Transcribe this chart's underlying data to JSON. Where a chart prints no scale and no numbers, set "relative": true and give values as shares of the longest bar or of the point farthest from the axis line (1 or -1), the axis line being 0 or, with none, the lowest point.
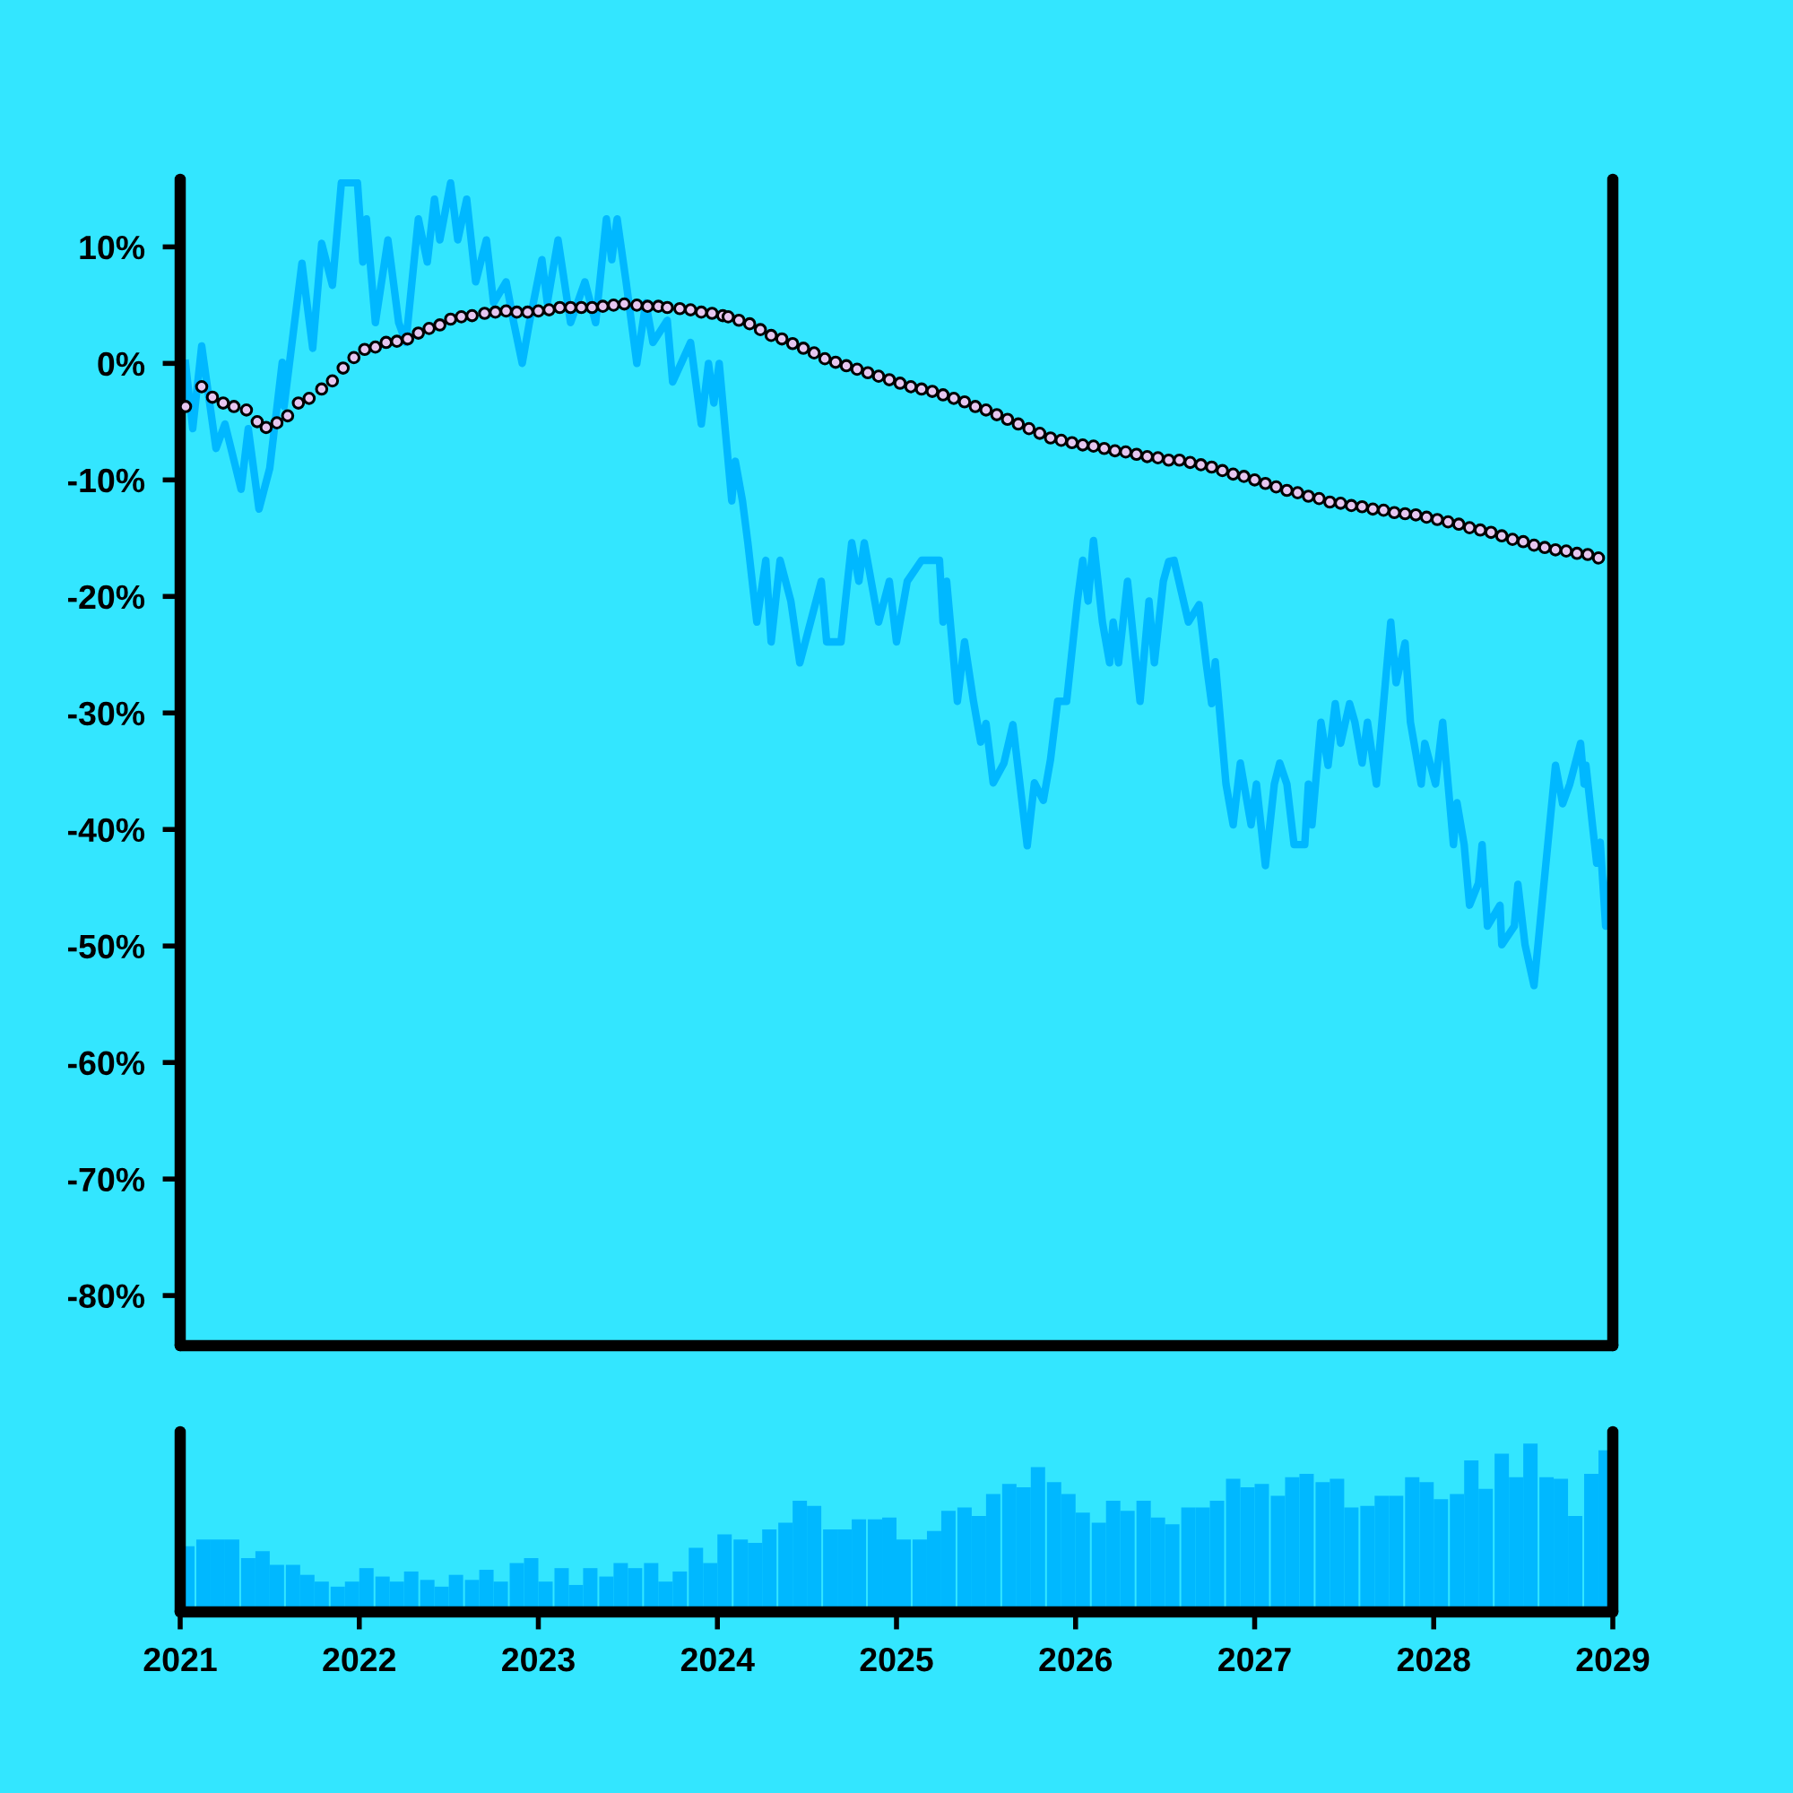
{
  "chart_data": [
    {
      "type": "line",
      "xlim": [
        2021,
        2029
      ],
      "ylim": [
        -84.3,
        15.8
      ],
      "tick_labels": "y",
      "grid": false,
      "yticks": [
        {
          "value": 10,
          "label": "10%"
        },
        {
          "value": 0,
          "label": "0%"
        },
        {
          "value": -10,
          "label": "-10%"
        },
        {
          "value": -20,
          "label": "-20%"
        },
        {
          "value": -30,
          "label": "-30%"
        },
        {
          "value": -40,
          "label": "-40%"
        },
        {
          "value": -50,
          "label": "-50%"
        },
        {
          "value": -60,
          "label": "-60%"
        },
        {
          "value": -70,
          "label": "-70%"
        },
        {
          "value": -80,
          "label": "-80%"
        }
      ],
      "series": [
        {
          "type": "line",
          "color": "#00b8ff",
          "line_style": "solid",
          "marker": "none",
          "x": [
            2021.03,
            2021.07,
            2021.12,
            2021.2,
            2021.25,
            2021.34,
            2021.38,
            2021.44,
            2021.5,
            2021.57,
            2021.58,
            2021.68,
            2021.71,
            2021.74,
            2021.79,
            2021.85,
            2021.9,
            2021.99,
            2022.02,
            2022.04,
            2022.09,
            2022.16,
            2022.22,
            2022.26,
            2022.33,
            2022.38,
            2022.42,
            2022.45,
            2022.51,
            2022.55,
            2022.6,
            2022.65,
            2022.71,
            2022.75,
            2022.82,
            2022.86,
            2022.91,
            2022.95,
            2023.02,
            2023.05,
            2023.11,
            2023.18,
            2023.26,
            2023.32,
            2023.38,
            2023.41,
            2023.44,
            2023.49,
            2023.55,
            2023.6,
            2023.64,
            2023.72,
            2023.75,
            2023.85,
            2023.91,
            2023.95,
            2023.98,
            2024.01,
            2024.08,
            2024.1,
            2024.14,
            2024.17,
            2024.22,
            2024.27,
            2024.3,
            2024.35,
            2024.41,
            2024.46,
            2024.58,
            2024.61,
            2024.69,
            2024.75,
            2024.79,
            2024.82,
            2024.9,
            2024.96,
            2025.0,
            2025.06,
            2025.14,
            2025.24,
            2025.26,
            2025.28,
            2025.34,
            2025.38,
            2025.43,
            2025.47,
            2025.5,
            2025.54,
            2025.6,
            2025.65,
            2025.7,
            2025.73,
            2025.77,
            2025.82,
            2025.86,
            2025.9,
            2025.95,
            2026.01,
            2026.04,
            2026.07,
            2026.1,
            2026.15,
            2026.19,
            2026.21,
            2026.24,
            2026.29,
            2026.36,
            2026.41,
            2026.44,
            2026.49,
            2026.52,
            2026.55,
            2026.63,
            2026.69,
            2026.73,
            2026.76,
            2026.78,
            2026.84,
            2026.88,
            2026.92,
            2026.98,
            2027.01,
            2027.06,
            2027.11,
            2027.14,
            2027.18,
            2027.22,
            2027.28,
            2027.3,
            2027.32,
            2027.37,
            2027.41,
            2027.45,
            2027.48,
            2027.53,
            2027.56,
            2027.6,
            2027.63,
            2027.68,
            2027.76,
            2027.79,
            2027.84,
            2027.87,
            2027.93,
            2027.95,
            2028.01,
            2028.05,
            2028.06,
            2028.11,
            2028.13,
            2028.17,
            2028.2,
            2028.25,
            2028.27,
            2028.3,
            2028.37,
            2028.38,
            2028.45,
            2028.47,
            2028.51,
            2028.56,
            2028.68,
            2028.72,
            2028.76,
            2028.82,
            2028.84,
            2028.85,
            2028.91,
            2028.93,
            2028.96,
            2028.99
          ],
          "values": [
            0.0,
            -5.6,
            1.5,
            -7.3,
            -5.2,
            -10.8,
            -5.6,
            -12.5,
            -9.0,
            0.1,
            -3.7,
            8.6,
            4.9,
            1.3,
            10.3,
            6.7,
            15.5,
            15.5,
            8.7,
            12.4,
            3.5,
            10.6,
            3.5,
            1.8,
            12.4,
            8.7,
            14.1,
            10.6,
            15.5,
            10.6,
            14.1,
            7.0,
            10.6,
            5.2,
            7.0,
            3.7,
            0.0,
            3.5,
            8.9,
            5.2,
            10.6,
            3.5,
            7.0,
            3.5,
            12.4,
            8.9,
            12.4,
            7.0,
            0.0,
            5.2,
            1.8,
            3.7,
            -1.6,
            1.8,
            -5.2,
            0.0,
            -3.4,
            0.0,
            -11.8,
            -8.4,
            -11.8,
            -15.4,
            -22.2,
            -16.9,
            -23.9,
            -16.9,
            -20.4,
            -25.7,
            -18.7,
            -23.9,
            -23.9,
            -15.4,
            -18.7,
            -15.4,
            -22.2,
            -18.7,
            -23.9,
            -18.7,
            -16.9,
            -16.9,
            -22.2,
            -18.7,
            -29.0,
            -23.9,
            -29.0,
            -32.5,
            -30.9,
            -36.0,
            -34.3,
            -31.0,
            -37.5,
            -41.4,
            -36.0,
            -37.5,
            -34.0,
            -29.0,
            -29.0,
            -20.4,
            -16.9,
            -20.4,
            -15.2,
            -22.2,
            -25.7,
            -22.2,
            -25.7,
            -18.7,
            -29.0,
            -20.4,
            -25.7,
            -18.7,
            -17.0,
            -16.9,
            -22.2,
            -20.7,
            -25.8,
            -29.2,
            -25.6,
            -36.1,
            -39.6,
            -34.3,
            -39.6,
            -36.1,
            -43.1,
            -36.1,
            -34.3,
            -36.1,
            -41.3,
            -41.3,
            -36.1,
            -39.6,
            -30.8,
            -34.5,
            -29.2,
            -32.6,
            -29.2,
            -30.8,
            -34.3,
            -30.8,
            -36.1,
            -22.2,
            -27.4,
            -24.0,
            -30.8,
            -36.1,
            -32.6,
            -36.1,
            -30.8,
            -32.6,
            -41.3,
            -37.7,
            -41.3,
            -46.5,
            -44.6,
            -41.3,
            -48.3,
            -46.5,
            -49.9,
            -48.3,
            -44.7,
            -49.9,
            -53.4,
            -34.5,
            -37.8,
            -36.1,
            -32.6,
            -36.1,
            -34.5,
            -42.9,
            -41.1,
            -48.3,
            -44.0
          ]
        },
        {
          "type": "scatter",
          "color": "#e6c6f0",
          "marker": "circle",
          "x": [
            2021.03,
            2021.12,
            2021.18,
            2021.24,
            2021.3,
            2021.37,
            2021.43,
            2021.48,
            2021.54,
            2021.6,
            2021.66,
            2021.72,
            2021.79,
            2021.85,
            2021.91,
            2021.97,
            2022.03,
            2022.09,
            2022.15,
            2022.21,
            2022.27,
            2022.33,
            2022.39,
            2022.45,
            2022.51,
            2022.57,
            2022.63,
            2022.7,
            2022.76,
            2022.82,
            2022.88,
            2022.94,
            2023.0,
            2023.06,
            2023.12,
            2023.18,
            2023.24,
            2023.3,
            2023.36,
            2023.42,
            2023.48,
            2023.55,
            2023.61,
            2023.67,
            2023.72,
            2023.79,
            2023.85,
            2023.91,
            2023.97,
            2024.03,
            2024.06,
            2024.12,
            2024.18,
            2024.24,
            2024.3,
            2024.36,
            2024.42,
            2024.48,
            2024.54,
            2024.6,
            2024.66,
            2024.72,
            2024.78,
            2024.84,
            2024.9,
            2024.96,
            2025.02,
            2025.08,
            2025.14,
            2025.2,
            2025.26,
            2025.32,
            2025.38,
            2025.44,
            2025.5,
            2025.56,
            2025.62,
            2025.68,
            2025.74,
            2025.8,
            2025.86,
            2025.92,
            2025.98,
            2026.04,
            2026.1,
            2026.16,
            2026.22,
            2026.28,
            2026.34,
            2026.4,
            2026.46,
            2026.52,
            2026.58,
            2026.64,
            2026.7,
            2026.76,
            2026.82,
            2026.88,
            2026.94,
            2027.0,
            2027.06,
            2027.12,
            2027.18,
            2027.24,
            2027.3,
            2027.36,
            2027.42,
            2027.48,
            2027.54,
            2027.6,
            2027.66,
            2027.72,
            2027.78,
            2027.84,
            2027.9,
            2027.96,
            2028.02,
            2028.08,
            2028.14,
            2028.2,
            2028.26,
            2028.32,
            2028.38,
            2028.44,
            2028.5,
            2028.56,
            2028.62,
            2028.68,
            2028.74,
            2028.8,
            2028.86,
            2028.92
          ],
          "values": [
            -3.7,
            -2.0,
            -2.9,
            -3.4,
            -3.7,
            -4.0,
            -5.0,
            -5.5,
            -5.1,
            -4.5,
            -3.4,
            -3.0,
            -2.2,
            -1.5,
            -0.4,
            0.5,
            1.2,
            1.4,
            1.8,
            1.9,
            2.1,
            2.6,
            3.0,
            3.3,
            3.8,
            4.0,
            4.1,
            4.3,
            4.4,
            4.5,
            4.4,
            4.4,
            4.5,
            4.6,
            4.8,
            4.8,
            4.8,
            4.8,
            4.9,
            5.0,
            5.1,
            5.0,
            4.9,
            4.9,
            4.8,
            4.7,
            4.6,
            4.4,
            4.3,
            4.1,
            4.0,
            3.7,
            3.4,
            2.9,
            2.4,
            2.1,
            1.7,
            1.3,
            0.9,
            0.4,
            0.1,
            -0.2,
            -0.5,
            -0.8,
            -1.1,
            -1.4,
            -1.7,
            -2.0,
            -2.2,
            -2.4,
            -2.7,
            -3.0,
            -3.3,
            -3.7,
            -4.0,
            -4.4,
            -4.8,
            -5.2,
            -5.6,
            -6.0,
            -6.4,
            -6.6,
            -6.8,
            -7.0,
            -7.1,
            -7.3,
            -7.5,
            -7.6,
            -7.8,
            -8.0,
            -8.1,
            -8.3,
            -8.3,
            -8.5,
            -8.7,
            -8.9,
            -9.2,
            -9.5,
            -9.7,
            -10.0,
            -10.3,
            -10.6,
            -10.9,
            -11.1,
            -11.4,
            -11.6,
            -11.9,
            -12.0,
            -12.2,
            -12.3,
            -12.5,
            -12.6,
            -12.8,
            -12.9,
            -13.0,
            -13.2,
            -13.4,
            -13.6,
            -13.8,
            -14.1,
            -14.3,
            -14.5,
            -14.8,
            -15.1,
            -15.3,
            -15.6,
            -15.8,
            -16.0,
            -16.1,
            -16.3,
            -16.4,
            -16.7
          ]
        }
      ]
    },
    {
      "type": "bar",
      "relative": true,
      "xlim": [
        2021,
        2029
      ],
      "tick_labels": "x",
      "grid": false,
      "xticks": [
        2021,
        2022,
        2023,
        2024,
        2025,
        2026,
        2027,
        2028,
        2029
      ],
      "series": [
        {
          "color": "#00b8ff",
          "x": [
            2021.04,
            2021.13,
            2021.21,
            2021.29,
            2021.38,
            2021.46,
            2021.54,
            2021.63,
            2021.71,
            2021.79,
            2021.88,
            2021.96,
            2022.04,
            2022.13,
            2022.21,
            2022.29,
            2022.38,
            2022.46,
            2022.54,
            2022.63,
            2022.71,
            2022.79,
            2022.88,
            2022.96,
            2023.04,
            2023.13,
            2023.21,
            2023.29,
            2023.38,
            2023.46,
            2023.54,
            2023.63,
            2023.71,
            2023.79,
            2023.88,
            2023.96,
            2024.04,
            2024.13,
            2024.21,
            2024.29,
            2024.38,
            2024.46,
            2024.54,
            2024.63,
            2024.71,
            2024.79,
            2024.88,
            2024.96,
            2025.04,
            2025.13,
            2025.21,
            2025.29,
            2025.38,
            2025.46,
            2025.54,
            2025.63,
            2025.71,
            2025.79,
            2025.88,
            2025.96,
            2026.04,
            2026.13,
            2026.21,
            2026.29,
            2026.38,
            2026.46,
            2026.54,
            2026.63,
            2026.71,
            2026.79,
            2026.88,
            2026.96,
            2027.04,
            2027.13,
            2027.21,
            2027.29,
            2027.38,
            2027.46,
            2027.54,
            2027.63,
            2027.71,
            2027.79,
            2027.88,
            2027.96,
            2028.04,
            2028.13,
            2028.21,
            2028.29,
            2028.38,
            2028.46,
            2028.54,
            2028.63,
            2028.71,
            2028.79,
            2028.88,
            2028.96
          ],
          "values": [
            0.39,
            0.43,
            0.43,
            0.43,
            0.32,
            0.36,
            0.28,
            0.28,
            0.22,
            0.18,
            0.15,
            0.18,
            0.26,
            0.21,
            0.18,
            0.24,
            0.19,
            0.15,
            0.22,
            0.19,
            0.25,
            0.18,
            0.29,
            0.32,
            0.18,
            0.26,
            0.16,
            0.26,
            0.21,
            0.29,
            0.26,
            0.29,
            0.18,
            0.24,
            0.38,
            0.29,
            0.46,
            0.43,
            0.41,
            0.49,
            0.53,
            0.66,
            0.63,
            0.49,
            0.49,
            0.55,
            0.55,
            0.56,
            0.43,
            0.43,
            0.48,
            0.6,
            0.62,
            0.57,
            0.7,
            0.76,
            0.74,
            0.86,
            0.77,
            0.7,
            0.59,
            0.53,
            0.66,
            0.6,
            0.66,
            0.56,
            0.52,
            0.62,
            0.62,
            0.66,
            0.79,
            0.74,
            0.76,
            0.69,
            0.8,
            0.82,
            0.77,
            0.79,
            0.62,
            0.63,
            0.69,
            0.69,
            0.8,
            0.77,
            0.67,
            0.7,
            0.9,
            0.73,
            0.94,
            0.8,
            1.0,
            0.8,
            0.79,
            0.57,
            0.82,
            0.96
          ]
        }
      ]
    }
  ]
}
